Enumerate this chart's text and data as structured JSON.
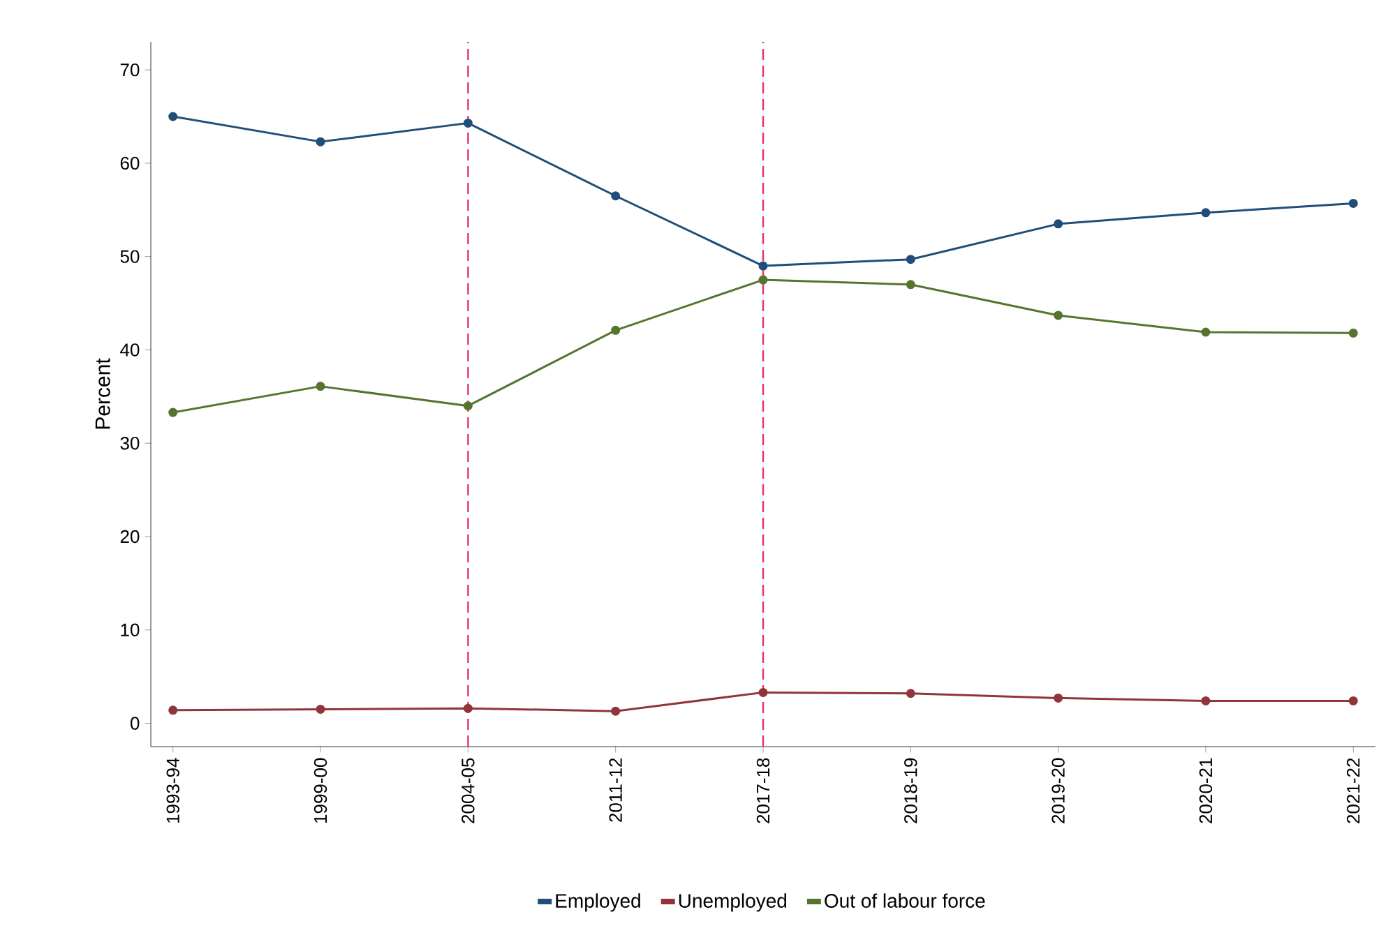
{
  "chart_data": {
    "type": "line",
    "ylabel": "Percent",
    "categories": [
      "1993-94",
      "1999-00",
      "2004-05",
      "2011-12",
      "2017-18",
      "2018-19",
      "2019-20",
      "2020-21",
      "2021-22"
    ],
    "ylim": [
      -2.5,
      73
    ],
    "yticks": [
      0,
      10,
      20,
      30,
      40,
      50,
      60,
      70
    ],
    "series": [
      {
        "name": "Employed",
        "color": "#1f4e79",
        "values": [
          65.0,
          62.3,
          64.3,
          56.5,
          49.0,
          49.7,
          53.5,
          54.7,
          55.7
        ]
      },
      {
        "name": "Unemployed",
        "color": "#90353b",
        "values": [
          1.4,
          1.5,
          1.6,
          1.3,
          3.3,
          3.2,
          2.7,
          2.4,
          2.4
        ]
      },
      {
        "name": "Out of labour force",
        "color": "#55752f",
        "values": [
          33.3,
          36.1,
          34.0,
          42.1,
          47.5,
          47.0,
          43.7,
          41.9,
          41.8
        ]
      }
    ],
    "ref_lines": [
      {
        "axis": "x",
        "value": "2004-05",
        "color": "#e8336b",
        "line_style": "dashed"
      },
      {
        "axis": "x",
        "value": "2017-18",
        "color": "#e8336b",
        "line_style": "dashed"
      }
    ],
    "grid": false,
    "legend": "bottom",
    "marker": "circle",
    "line_style": "solid"
  }
}
